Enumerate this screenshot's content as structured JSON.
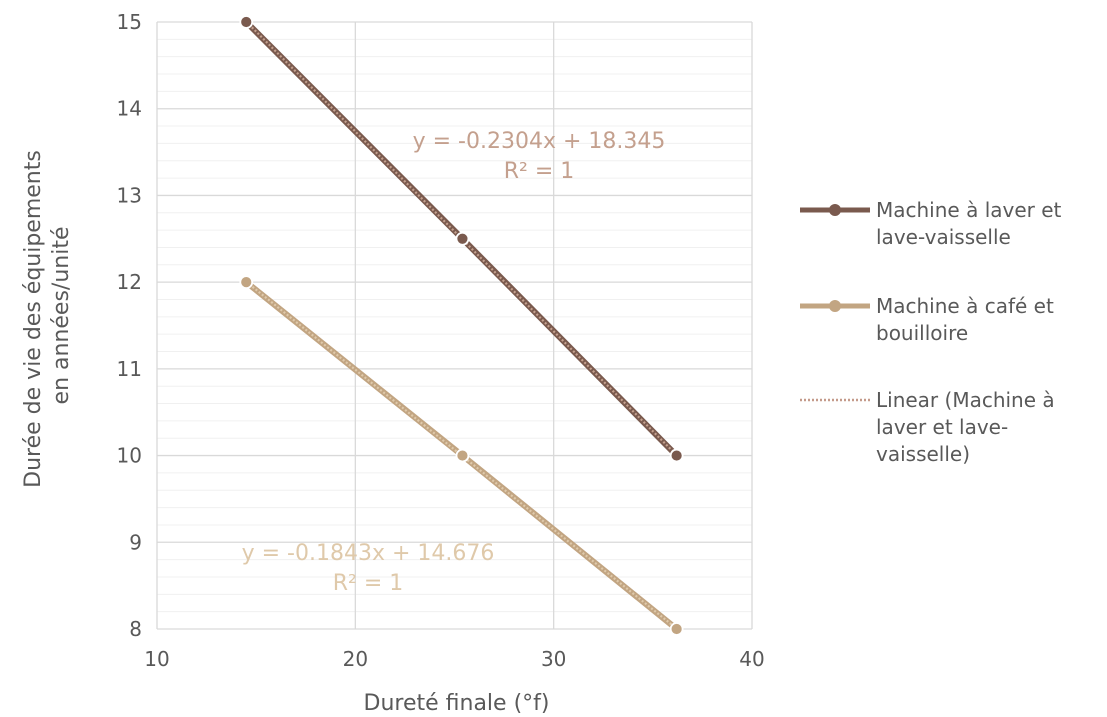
{
  "chart_data": {
    "type": "line",
    "xlabel": "Dureté finale (°f)",
    "ylabel": [
      "Durée de vie des équipements",
      "en années/unité"
    ],
    "xlim": [
      10,
      40
    ],
    "ylim": [
      8,
      15
    ],
    "x_ticks": [
      10,
      20,
      30,
      40
    ],
    "y_ticks": [
      8,
      9,
      10,
      11,
      12,
      13,
      14,
      15
    ],
    "grid": true,
    "legend_position": "right",
    "series": [
      {
        "name": "Machine à laver et lave-vaisselle",
        "legend_lines": [
          "Machine à laver et",
          "lave-vaisselle"
        ],
        "color": "#7a5a4e",
        "x": [
          14.5,
          25.4,
          36.2
        ],
        "y": [
          15,
          12.5,
          10
        ],
        "trendline": {
          "equation": "y = -0.2304x + 18.345",
          "r2": "R² = 1",
          "slope": -0.2304,
          "intercept": 18.345,
          "color": "#c4a08e"
        }
      },
      {
        "name": "Machine à café et bouilloire",
        "legend_lines": [
          "Machine à café et",
          "bouilloire"
        ],
        "color": "#c2a582",
        "x": [
          14.5,
          25.4,
          36.2
        ],
        "y": [
          12,
          10,
          8
        ],
        "trendline": {
          "equation": "y = -0.1843x + 14.676",
          "r2": "R² = 1",
          "slope": -0.1843,
          "intercept": 14.676,
          "color": "#dfc9aa"
        }
      }
    ],
    "trendline_legend": {
      "lines": [
        "Linear (Machine à",
        "laver et lave-",
        "vaisselle)"
      ],
      "color": "#c49a8a"
    }
  }
}
